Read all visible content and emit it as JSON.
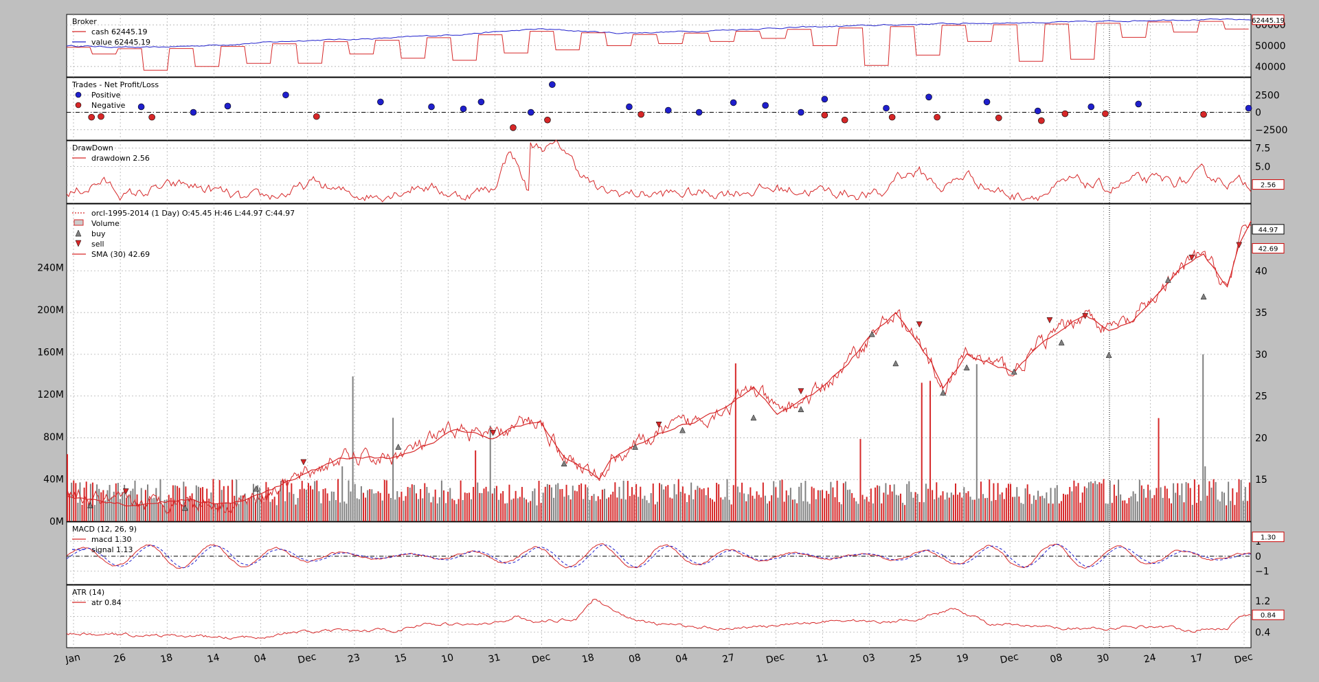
{
  "colors": {
    "figure_bg": "#bfbfbf",
    "panel_bg": "#ffffff",
    "red": "#d62728",
    "blue": "#1f1fcc",
    "grey": "#808080",
    "grid": "#b0b0b0",
    "label_box_red": "#cc0000",
    "label_box_blue": "#0000cc"
  },
  "chart_data": [
    {
      "type": "line",
      "title": "Broker",
      "ylim": [
        35000,
        65000
      ],
      "yticks": [
        40000,
        50000,
        60000
      ],
      "grid": true,
      "legend": "top-left",
      "series": [
        {
          "name": "cash",
          "label": "cash 62445.19",
          "color": "#d62728"
        },
        {
          "name": "value",
          "label": "value 62445.19",
          "color": "#1f1fcc"
        }
      ],
      "last_value_label": "62445.19",
      "cash_levels": [
        50000,
        46000,
        40500,
        49000,
        45500,
        40000,
        52000,
        41500,
        42500,
        52000,
        43500,
        46000,
        54000,
        44000,
        56500,
        43000,
        58000,
        46500,
        57500,
        48000,
        59500,
        50000,
        60500,
        51000,
        61500,
        52000,
        62000,
        53500,
        62445
      ],
      "value_levels": [
        50000,
        49000,
        50500,
        52500,
        53500,
        55500,
        58000,
        56000,
        57000,
        58500,
        59500,
        60500,
        61000,
        61500,
        62500,
        62445
      ]
    },
    {
      "type": "scatter",
      "title": "Trades - Net Profit/Loss",
      "ylim": [
        -4000,
        5000
      ],
      "yticks": [
        -2500,
        0,
        2500
      ],
      "ytick_labels": [
        "−2500",
        "0",
        "2500"
      ],
      "grid": true,
      "legend": "top-left",
      "series": [
        {
          "name": "Positive",
          "color": "#1f1fcc",
          "x": [
            0.063,
            0.107,
            0.136,
            0.185,
            0.265,
            0.308,
            0.335,
            0.35,
            0.392,
            0.41,
            0.475,
            0.508,
            0.534,
            0.563,
            0.59,
            0.62,
            0.64,
            0.692,
            0.728,
            0.777,
            0.82,
            0.865,
            0.905,
            0.998
          ],
          "y": [
            800,
            0,
            900,
            2500,
            1500,
            800,
            500,
            1500,
            0,
            4000,
            800,
            300,
            0,
            1400,
            1000,
            0,
            1900,
            600,
            2200,
            1500,
            200,
            800,
            1200,
            600
          ]
        },
        {
          "name": "Negative",
          "color": "#d62728",
          "x": [
            0.021,
            0.029,
            0.072,
            0.211,
            0.377,
            0.406,
            0.485,
            0.64,
            0.657,
            0.697,
            0.735,
            0.787,
            0.823,
            0.843,
            0.877,
            0.96
          ],
          "y": [
            -700,
            -600,
            -700,
            -600,
            -2200,
            -1100,
            -300,
            -400,
            -1100,
            -700,
            -700,
            -800,
            -1200,
            -200,
            -200,
            -300
          ]
        }
      ]
    },
    {
      "type": "line",
      "title": "DrawDown",
      "ylim": [
        0,
        8.5
      ],
      "yticks": [
        2.5,
        5.0,
        7.5
      ],
      "ytick_labels": [
        "2.5",
        "5.0",
        "7.5"
      ],
      "grid": true,
      "legend": "top-left",
      "series": [
        {
          "name": "drawdown",
          "label": "drawdown 2.56",
          "color": "#d62728"
        }
      ],
      "last_value_label": "2.56"
    },
    {
      "type": "line",
      "title": "orcl-1995-2014 (1 Day) O:45.45 H:46 L:44.97 C:44.97",
      "ylim": [
        10,
        48
      ],
      "yticks": [
        15,
        20,
        25,
        30,
        35,
        40
      ],
      "left_ylim": [
        0,
        300000000
      ],
      "left_yticks": [
        0,
        40000000,
        80000000,
        120000000,
        160000000,
        200000000,
        240000000
      ],
      "left_ytick_labels": [
        "0M",
        "40M",
        "80M",
        "120M",
        "160M",
        "200M",
        "240M"
      ],
      "grid": true,
      "legend": "top-left",
      "series": [
        {
          "name": "orcl-1995-2014",
          "label": "orcl-1995-2014 (1 Day) O:45.45 H:46 L:44.97 C:44.97",
          "color": "#d62728"
        },
        {
          "name": "Volume",
          "label": "Volume",
          "color": "#d62728"
        },
        {
          "name": "buy",
          "label": "buy",
          "color": "#808080"
        },
        {
          "name": "sell",
          "label": "sell",
          "color": "#d62728"
        },
        {
          "name": "SMA (30)",
          "label": "SMA (30) 42.69",
          "color": "#d62728"
        }
      ],
      "close_label": "44.97",
      "sma_label": "42.69",
      "price_trend": [
        [
          0,
          13
        ],
        [
          0.05,
          12
        ],
        [
          0.1,
          12.5
        ],
        [
          0.14,
          12
        ],
        [
          0.17,
          13.5
        ],
        [
          0.2,
          15.5
        ],
        [
          0.23,
          17.5
        ],
        [
          0.27,
          17.5
        ],
        [
          0.3,
          19
        ],
        [
          0.33,
          21
        ],
        [
          0.36,
          20
        ],
        [
          0.38,
          21.5
        ],
        [
          0.4,
          22
        ],
        [
          0.42,
          18
        ],
        [
          0.44,
          16
        ],
        [
          0.45,
          15
        ],
        [
          0.46,
          17.5
        ],
        [
          0.5,
          20.5
        ],
        [
          0.53,
          22
        ],
        [
          0.56,
          24
        ],
        [
          0.58,
          26
        ],
        [
          0.6,
          23
        ],
        [
          0.63,
          25
        ],
        [
          0.66,
          29
        ],
        [
          0.68,
          32.5
        ],
        [
          0.7,
          35
        ],
        [
          0.71,
          33
        ],
        [
          0.73,
          29
        ],
        [
          0.74,
          26
        ],
        [
          0.76,
          30
        ],
        [
          0.78,
          29
        ],
        [
          0.8,
          28
        ],
        [
          0.82,
          31
        ],
        [
          0.84,
          33
        ],
        [
          0.86,
          35
        ],
        [
          0.88,
          33
        ],
        [
          0.9,
          34
        ],
        [
          0.92,
          37
        ],
        [
          0.94,
          40
        ],
        [
          0.96,
          42
        ],
        [
          0.97,
          40
        ],
        [
          0.98,
          38
        ],
        [
          0.99,
          43
        ],
        [
          1.0,
          46
        ]
      ],
      "buy_markers": [
        [
          0.02,
          12.5
        ],
        [
          0.1,
          12.2
        ],
        [
          0.16,
          14.5
        ],
        [
          0.28,
          19.5
        ],
        [
          0.42,
          17.5
        ],
        [
          0.48,
          19.5
        ],
        [
          0.52,
          21.5
        ],
        [
          0.58,
          23
        ],
        [
          0.62,
          24
        ],
        [
          0.68,
          33
        ],
        [
          0.7,
          29.5
        ],
        [
          0.74,
          26
        ],
        [
          0.76,
          29
        ],
        [
          0.8,
          28.5
        ],
        [
          0.84,
          32
        ],
        [
          0.88,
          30.5
        ],
        [
          0.93,
          39.5
        ],
        [
          0.96,
          37.5
        ]
      ],
      "sell_markers": [
        [
          0.05,
          13
        ],
        [
          0.2,
          16.5
        ],
        [
          0.36,
          20
        ],
        [
          0.5,
          21
        ],
        [
          0.62,
          25
        ],
        [
          0.72,
          33
        ],
        [
          0.83,
          33.5
        ],
        [
          0.86,
          34
        ],
        [
          0.95,
          41
        ],
        [
          0.99,
          42.5
        ]
      ]
    },
    {
      "type": "line",
      "title": "MACD (12, 26, 9)",
      "ylim": [
        -1.9,
        2.3
      ],
      "yticks": [
        -1,
        0,
        1
      ],
      "ytick_labels": [
        "−1",
        "0",
        "1"
      ],
      "grid": true,
      "legend": "top-left",
      "series": [
        {
          "name": "macd",
          "label": "macd 1.30",
          "color": "#d62728"
        },
        {
          "name": "signal",
          "label": "signal 1.13",
          "color": "#1f1fcc"
        }
      ],
      "macd_label": "1.30"
    },
    {
      "type": "line",
      "title": "ATR (14)",
      "ylim": [
        0,
        1.6
      ],
      "yticks": [
        0.4,
        0.8,
        1.2
      ],
      "ytick_labels": [
        "0.4",
        "0.8",
        "1.2"
      ],
      "grid": true,
      "legend": "top-left",
      "series": [
        {
          "name": "atr",
          "label": "atr 0.84",
          "color": "#d62728"
        }
      ],
      "last_value_label": "0.84",
      "atr_trend": [
        [
          0,
          0.35
        ],
        [
          0.1,
          0.3
        ],
        [
          0.15,
          0.25
        ],
        [
          0.2,
          0.4
        ],
        [
          0.28,
          0.45
        ],
        [
          0.3,
          0.6
        ],
        [
          0.36,
          0.6
        ],
        [
          0.38,
          0.8
        ],
        [
          0.4,
          0.65
        ],
        [
          0.43,
          0.75
        ],
        [
          0.445,
          1.25
        ],
        [
          0.46,
          1.0
        ],
        [
          0.48,
          0.7
        ],
        [
          0.5,
          0.6
        ],
        [
          0.55,
          0.5
        ],
        [
          0.6,
          0.55
        ],
        [
          0.65,
          0.7
        ],
        [
          0.66,
          0.7
        ],
        [
          0.7,
          0.65
        ],
        [
          0.72,
          0.75
        ],
        [
          0.75,
          1.0
        ],
        [
          0.7,
          0.7
        ],
        [
          0.78,
          0.6
        ],
        [
          0.84,
          0.5
        ],
        [
          0.88,
          0.5
        ],
        [
          0.92,
          0.55
        ],
        [
          0.95,
          0.45
        ],
        [
          0.98,
          0.5
        ],
        [
          0.99,
          0.84
        ],
        [
          1.0,
          0.84
        ]
      ]
    }
  ],
  "x_ticks": [
    "Jan",
    "26",
    "18",
    "14",
    "04",
    "Dec",
    "23",
    "15",
    "10",
    "31",
    "Dec",
    "18",
    "08",
    "04",
    "27",
    "Dec",
    "11",
    "03",
    "25",
    "19",
    "Dec",
    "08",
    "30",
    "24",
    "17",
    "Dec"
  ]
}
